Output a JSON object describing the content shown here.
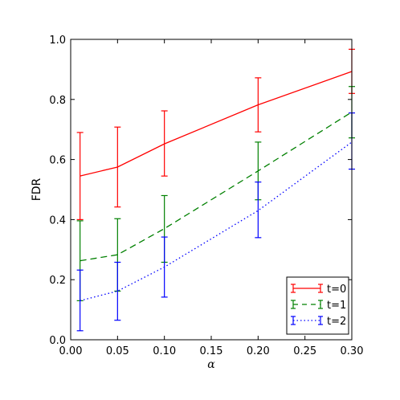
{
  "chart_data": {
    "type": "line",
    "title": "",
    "xlabel": "α",
    "ylabel": "FDR",
    "xlim": [
      0.0,
      0.3
    ],
    "ylim": [
      0.0,
      1.0
    ],
    "x_ticks": [
      "0.00",
      "0.05",
      "0.10",
      "0.15",
      "0.20",
      "0.25",
      "0.30"
    ],
    "y_ticks": [
      "0.0",
      "0.2",
      "0.4",
      "0.6",
      "0.8",
      "1.0"
    ],
    "grid": false,
    "legend_position": "bottom-right",
    "x": [
      0.01,
      0.05,
      0.1,
      0.2,
      0.3
    ],
    "series": [
      {
        "name": "t=0",
        "color": "#ff0000",
        "line_style": "solid",
        "values": [
          0.545,
          0.575,
          0.652,
          0.782,
          0.893
        ],
        "error_low": [
          0.4,
          0.442,
          0.545,
          0.692,
          0.82
        ],
        "error_high": [
          0.69,
          0.708,
          0.762,
          0.872,
          0.967
        ]
      },
      {
        "name": "t=1",
        "color": "#008000",
        "line_style": "dashed",
        "values": [
          0.263,
          0.283,
          0.37,
          0.562,
          0.758
        ],
        "error_low": [
          0.13,
          0.162,
          0.258,
          0.466,
          0.672
        ],
        "error_high": [
          0.396,
          0.403,
          0.48,
          0.658,
          0.843
        ]
      },
      {
        "name": "t=2",
        "color": "#0000ff",
        "line_style": "dotted",
        "values": [
          0.13,
          0.162,
          0.242,
          0.43,
          0.658
        ],
        "error_low": [
          0.03,
          0.065,
          0.142,
          0.34,
          0.568
        ],
        "error_high": [
          0.232,
          0.258,
          0.342,
          0.525,
          0.755
        ]
      }
    ]
  }
}
